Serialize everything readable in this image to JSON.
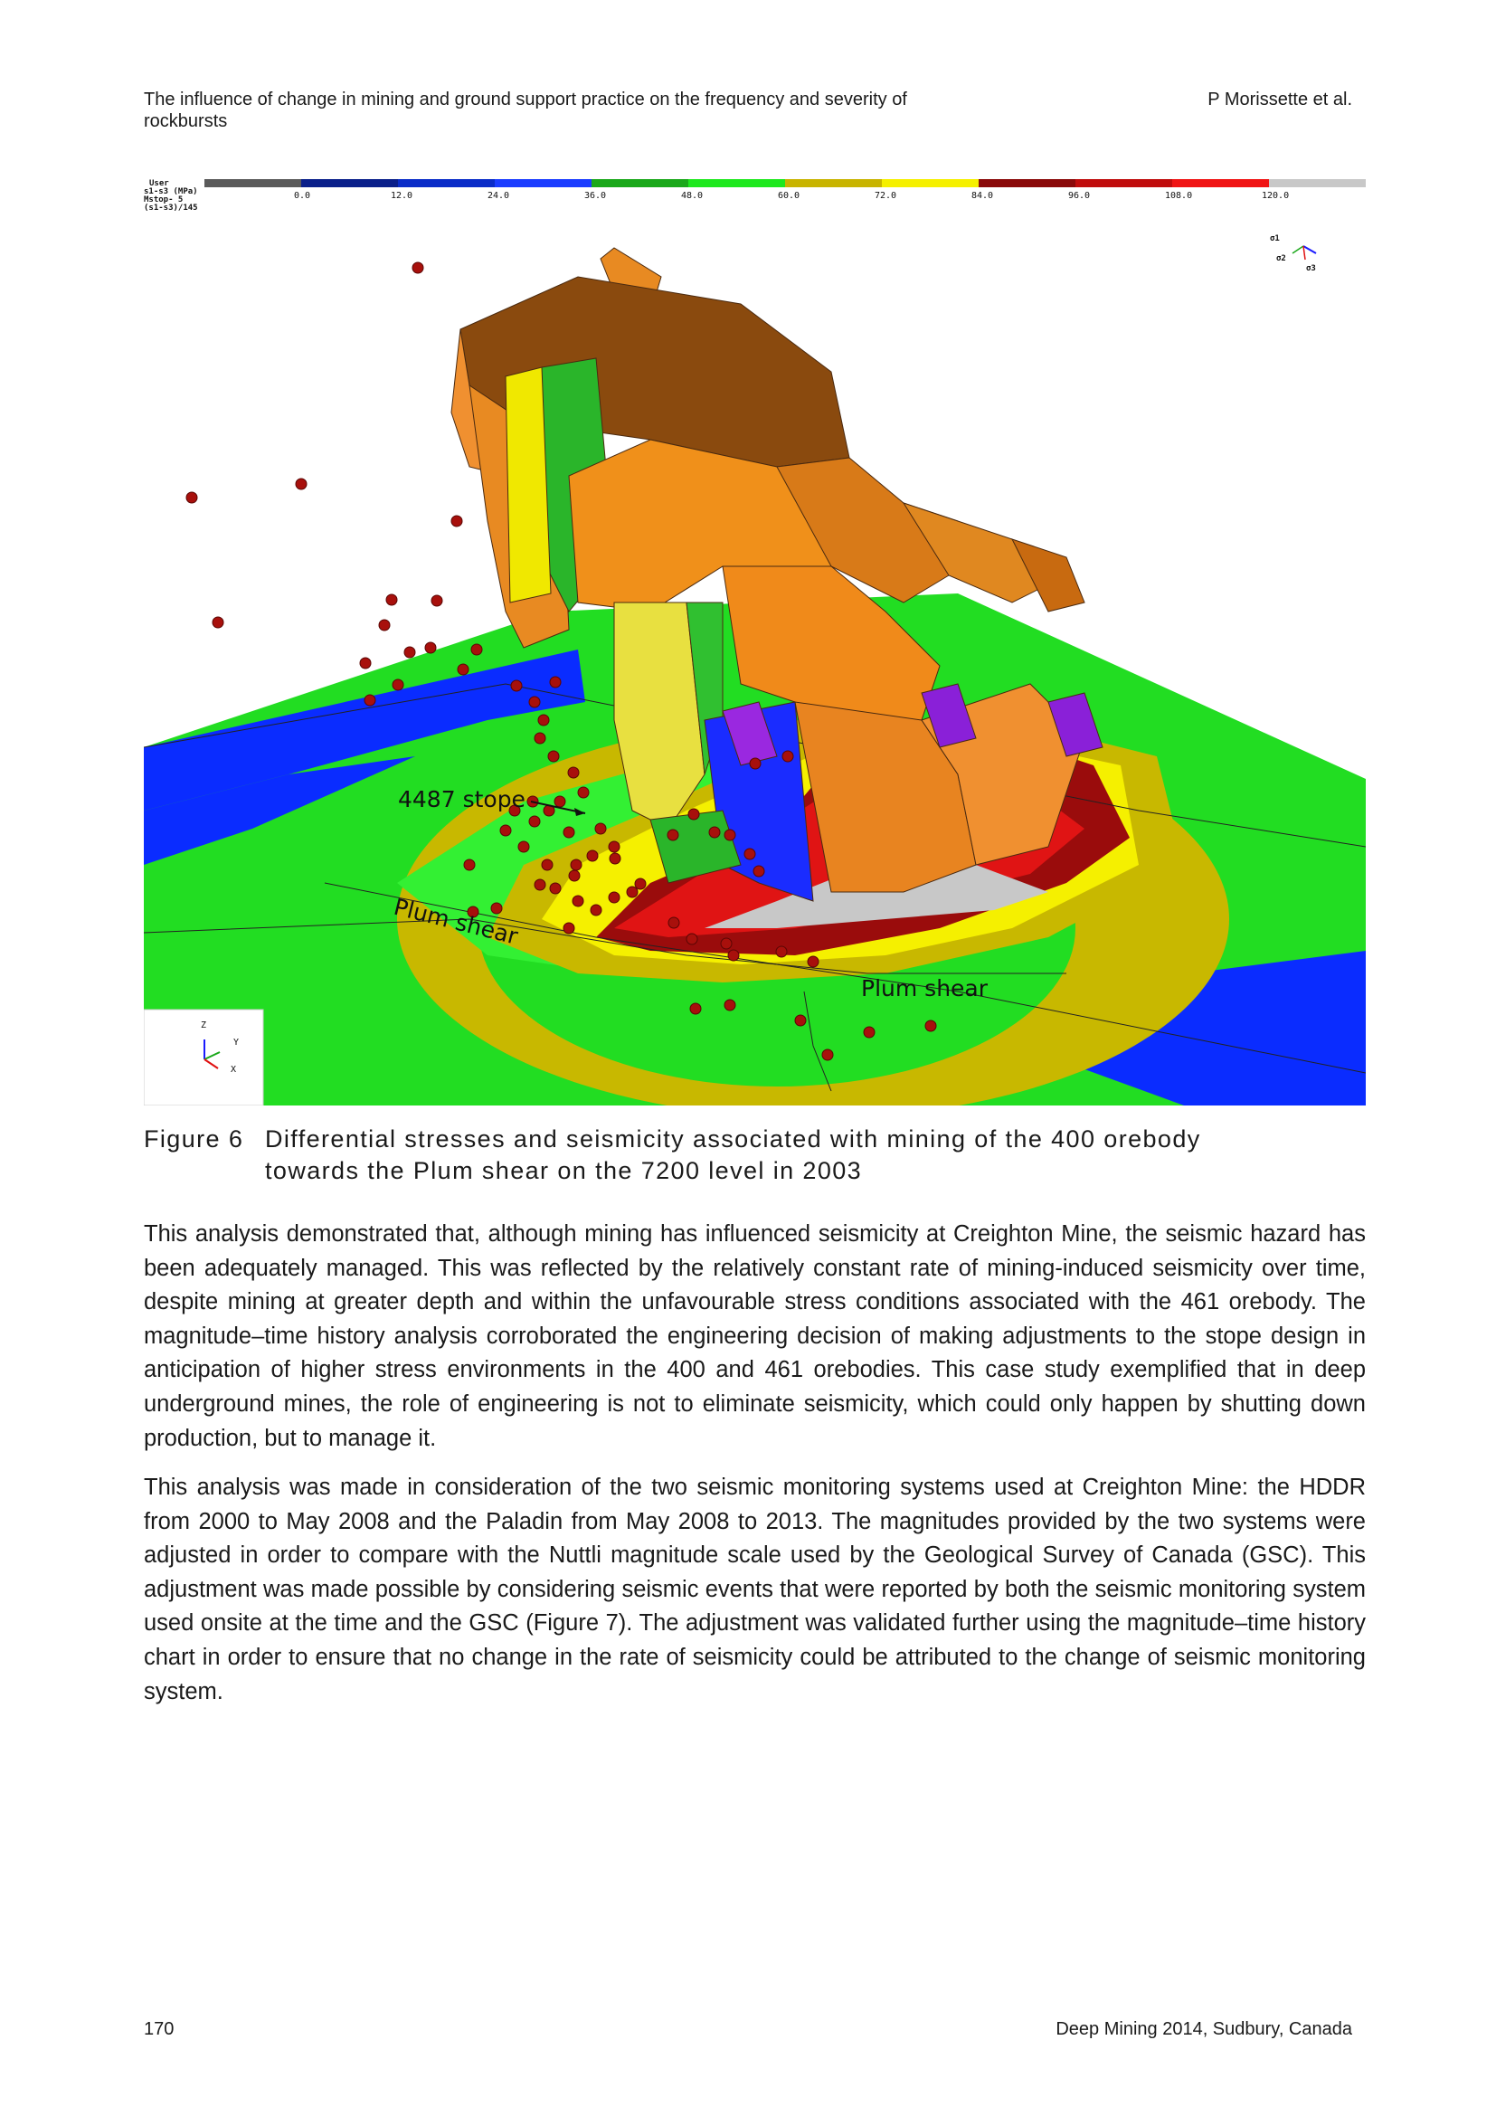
{
  "header": {
    "title": "The influence of change in mining and ground support practice on the frequency and severity of rockbursts",
    "authors": "P Morissette et al."
  },
  "figure": {
    "legend": {
      "label_lines": [
        "User",
        "s1-s3 (MPa)",
        "Mstop- 5",
        "(s1-s3)/145"
      ],
      "ticks": [
        "0.0",
        "12.0",
        "24.0",
        "36.0",
        "48.0",
        "60.0",
        "72.0",
        "84.0",
        "96.0",
        "108.0",
        "120.0"
      ],
      "colors": [
        "#5a5a5a",
        "#0a1f8a",
        "#0a2cc8",
        "#1a3cff",
        "#1aa81a",
        "#1ee81e",
        "#c8b400",
        "#f5f000",
        "#8a0a0a",
        "#c00c0c",
        "#f01414",
        "#c8c8c8"
      ]
    },
    "annotations": {
      "stope": "4487 stope",
      "shear_left": "Plum shear",
      "shear_right": "Plum shear"
    },
    "axis_triad": {
      "z": "Z",
      "y": "Y",
      "x": "X"
    },
    "stress_triad": {
      "s1": "σ1",
      "s2": "σ2",
      "s3": "σ3"
    }
  },
  "caption": {
    "number": "Figure 6",
    "line1": "Differential stresses and seismicity associated with mining of the 400 orebody",
    "line2": "towards the Plum shear on the 7200 level in 2003"
  },
  "paragraphs": [
    "This analysis demonstrated that, although mining has influenced seismicity at Creighton Mine, the seismic hazard has been adequately managed. This was reflected by the relatively constant rate of mining-induced seismicity over time, despite mining at greater depth and within the unfavourable stress conditions associated with the 461 orebody. The magnitude–time history analysis corroborated the engineering decision of making adjustments to the stope design in anticipation of higher stress environments in the 400 and 461 orebodies. This case study exemplified that in deep underground mines, the role of engineering is not to eliminate seismicity, which could only happen by shutting down production, but to manage it.",
    "This analysis was made in consideration of the two seismic monitoring systems used at Creighton Mine: the HDDR from 2000 to May 2008 and the Paladin from May 2008 to 2013. The magnitudes provided by the two systems were adjusted in order to compare with the Nuttli magnitude scale used by the Geological Survey of Canada (GSC). This adjustment was made possible by considering seismic events that were reported by both the seismic monitoring system used onsite at the time and the GSC (Figure 7). The adjustment was validated further using the magnitude–time history chart in order to ensure that no change in the rate of seismicity could be attributed to the change of seismic monitoring system."
  ],
  "footer": {
    "page": "170",
    "conference": "Deep Mining 2014, Sudbury, Canada"
  }
}
